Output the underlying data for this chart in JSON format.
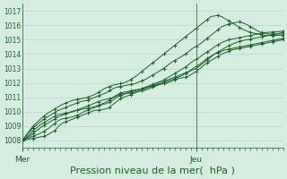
{
  "bg_color": "#d4ede0",
  "grid_color": "#b0d4c0",
  "line_color": "#1a5e28",
  "marker_color": "#1a5e28",
  "vline_color": "#556655",
  "xlabel": "Pression niveau de la mer(  hPa )",
  "xlabel_fontsize": 8,
  "ylim": [
    1007.5,
    1017.5
  ],
  "yticks": [
    1008,
    1009,
    1010,
    1011,
    1012,
    1013,
    1014,
    1015,
    1016,
    1017
  ],
  "ytick_fontsize": 6,
  "xtick_labels": [
    "Mer",
    "Jeu"
  ],
  "xtick_positions": [
    0,
    0.667
  ],
  "vline_x": 0.667,
  "n_points": 73,
  "series": [
    [
      1008.0,
      1008.05,
      1008.1,
      1008.15,
      1008.2,
      1008.25,
      1008.3,
      1008.4,
      1008.55,
      1008.7,
      1009.0,
      1009.2,
      1009.3,
      1009.4,
      1009.5,
      1009.6,
      1009.7,
      1009.8,
      1009.9,
      1010.0,
      1010.1,
      1010.1,
      1010.15,
      1010.2,
      1010.3,
      1010.5,
      1010.7,
      1010.9,
      1011.0,
      1011.1,
      1011.2,
      1011.3,
      1011.4,
      1011.5,
      1011.6,
      1011.7,
      1011.8,
      1011.9,
      1012.0,
      1012.1,
      1012.2,
      1012.3,
      1012.4,
      1012.5,
      1012.6,
      1012.7,
      1012.8,
      1012.9,
      1013.0,
      1013.2,
      1013.4,
      1013.6,
      1013.8,
      1014.0,
      1014.15,
      1014.3,
      1014.45,
      1014.6,
      1014.7,
      1014.8,
      1014.9,
      1014.95,
      1015.0,
      1015.05,
      1015.1,
      1015.15,
      1015.2,
      1015.25,
      1015.3,
      1015.35,
      1015.4,
      1015.45,
      1015.5
    ],
    [
      1008.0,
      1008.1,
      1008.2,
      1008.3,
      1008.4,
      1008.5,
      1008.65,
      1008.8,
      1009.0,
      1009.2,
      1009.4,
      1009.5,
      1009.55,
      1009.6,
      1009.65,
      1009.75,
      1009.85,
      1010.0,
      1010.1,
      1010.2,
      1010.3,
      1010.4,
      1010.5,
      1010.55,
      1010.65,
      1010.8,
      1011.0,
      1011.1,
      1011.2,
      1011.3,
      1011.4,
      1011.45,
      1011.5,
      1011.6,
      1011.7,
      1011.75,
      1011.8,
      1011.85,
      1011.9,
      1011.95,
      1012.0,
      1012.1,
      1012.2,
      1012.3,
      1012.35,
      1012.4,
      1012.5,
      1012.65,
      1012.8,
      1013.0,
      1013.2,
      1013.4,
      1013.55,
      1013.7,
      1013.85,
      1014.0,
      1014.1,
      1014.2,
      1014.3,
      1014.35,
      1014.4,
      1014.45,
      1014.5,
      1014.55,
      1014.6,
      1014.65,
      1014.7,
      1014.75,
      1014.8,
      1014.85,
      1014.9,
      1014.95,
      1015.0
    ],
    [
      1008.0,
      1008.15,
      1008.3,
      1008.5,
      1008.7,
      1008.9,
      1009.05,
      1009.2,
      1009.35,
      1009.5,
      1009.65,
      1009.75,
      1009.85,
      1009.95,
      1010.05,
      1010.1,
      1010.15,
      1010.2,
      1010.25,
      1010.3,
      1010.35,
      1010.45,
      1010.55,
      1010.65,
      1010.8,
      1010.95,
      1011.1,
      1011.2,
      1011.25,
      1011.3,
      1011.3,
      1011.35,
      1011.4,
      1011.45,
      1011.5,
      1011.6,
      1011.7,
      1011.8,
      1011.9,
      1012.0,
      1012.1,
      1012.2,
      1012.3,
      1012.4,
      1012.5,
      1012.65,
      1012.8,
      1013.0,
      1013.15,
      1013.3,
      1013.5,
      1013.7,
      1013.85,
      1014.0,
      1014.1,
      1014.2,
      1014.3,
      1014.35,
      1014.4,
      1014.45,
      1014.5,
      1014.55,
      1014.6,
      1014.65,
      1014.7,
      1014.75,
      1014.8,
      1014.85,
      1014.9,
      1014.95,
      1015.0,
      1015.05,
      1015.1
    ],
    [
      1008.0,
      1008.2,
      1008.4,
      1008.7,
      1008.9,
      1009.1,
      1009.25,
      1009.4,
      1009.55,
      1009.7,
      1009.8,
      1009.85,
      1009.9,
      1009.95,
      1010.0,
      1010.1,
      1010.2,
      1010.3,
      1010.4,
      1010.5,
      1010.6,
      1010.7,
      1010.8,
      1010.85,
      1010.9,
      1011.0,
      1011.15,
      1011.3,
      1011.35,
      1011.4,
      1011.45,
      1011.5,
      1011.55,
      1011.6,
      1011.7,
      1011.8,
      1011.9,
      1012.0,
      1012.1,
      1012.2,
      1012.35,
      1012.5,
      1012.65,
      1012.8,
      1012.95,
      1013.1,
      1013.3,
      1013.5,
      1013.65,
      1013.8,
      1014.0,
      1014.15,
      1014.3,
      1014.5,
      1014.65,
      1014.8,
      1014.9,
      1015.0,
      1015.05,
      1015.1,
      1015.15,
      1015.2,
      1015.25,
      1015.3,
      1015.35,
      1015.4,
      1015.45,
      1015.5,
      1015.52,
      1015.54,
      1015.55,
      1015.57,
      1015.6
    ],
    [
      1008.0,
      1008.3,
      1008.6,
      1008.9,
      1009.1,
      1009.3,
      1009.5,
      1009.65,
      1009.8,
      1009.95,
      1010.1,
      1010.2,
      1010.3,
      1010.4,
      1010.5,
      1010.6,
      1010.7,
      1010.75,
      1010.8,
      1010.9,
      1011.0,
      1011.1,
      1011.2,
      1011.3,
      1011.45,
      1011.6,
      1011.7,
      1011.75,
      1011.8,
      1011.85,
      1011.9,
      1011.95,
      1012.05,
      1012.15,
      1012.25,
      1012.4,
      1012.55,
      1012.7,
      1012.85,
      1013.0,
      1013.2,
      1013.4,
      1013.55,
      1013.7,
      1013.85,
      1014.0,
      1014.2,
      1014.4,
      1014.55,
      1014.7,
      1014.9,
      1015.1,
      1015.3,
      1015.5,
      1015.7,
      1015.9,
      1016.0,
      1016.1,
      1016.15,
      1016.2,
      1016.25,
      1016.15,
      1016.05,
      1015.9,
      1015.75,
      1015.6,
      1015.5,
      1015.45,
      1015.4,
      1015.4,
      1015.4,
      1015.4,
      1015.4
    ],
    [
      1008.0,
      1008.35,
      1008.7,
      1009.0,
      1009.25,
      1009.5,
      1009.7,
      1009.9,
      1010.05,
      1010.2,
      1010.35,
      1010.5,
      1010.6,
      1010.7,
      1010.8,
      1010.85,
      1010.9,
      1010.95,
      1011.0,
      1011.1,
      1011.2,
      1011.35,
      1011.5,
      1011.65,
      1011.75,
      1011.85,
      1011.9,
      1011.95,
      1012.0,
      1012.1,
      1012.25,
      1012.4,
      1012.6,
      1012.8,
      1013.0,
      1013.2,
      1013.4,
      1013.6,
      1013.8,
      1014.0,
      1014.2,
      1014.4,
      1014.6,
      1014.8,
      1015.0,
      1015.2,
      1015.4,
      1015.6,
      1015.8,
      1016.0,
      1016.2,
      1016.4,
      1016.6,
      1016.65,
      1016.7,
      1016.6,
      1016.45,
      1016.3,
      1016.15,
      1016.0,
      1015.85,
      1015.7,
      1015.6,
      1015.5,
      1015.45,
      1015.4,
      1015.35,
      1015.3,
      1015.3,
      1015.3,
      1015.3,
      1015.3,
      1015.3
    ]
  ]
}
